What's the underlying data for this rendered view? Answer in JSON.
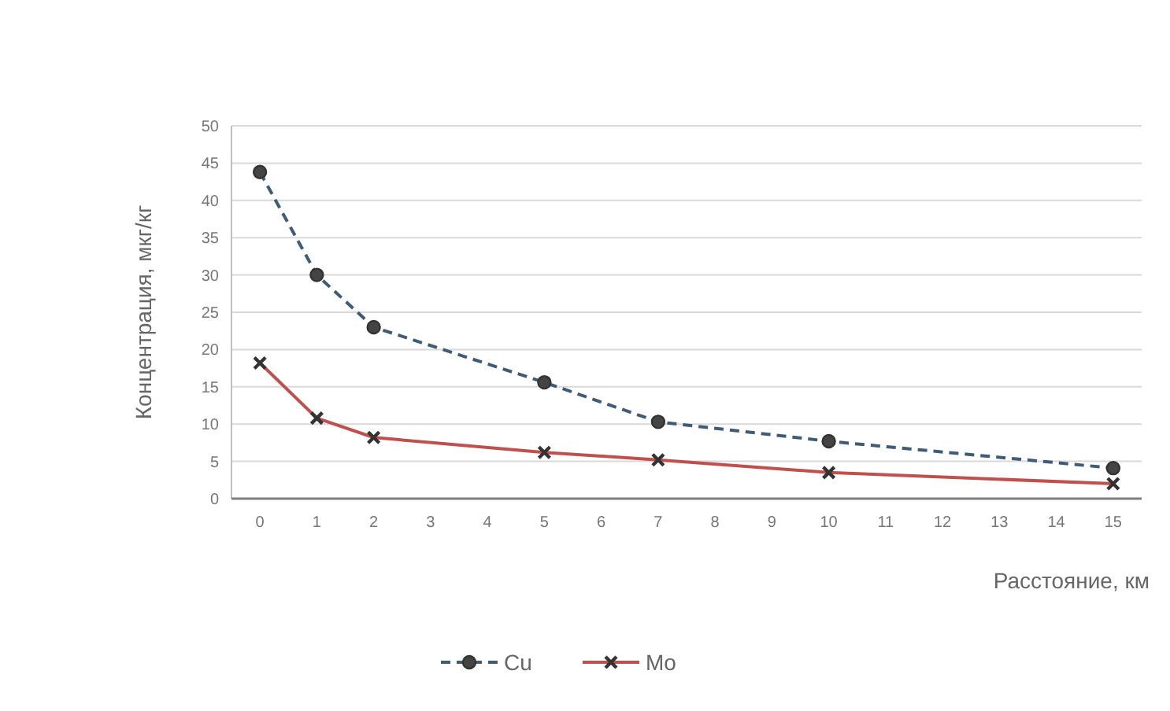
{
  "chart_data": {
    "type": "line",
    "xlabel": "Расстояние, км",
    "ylabel": "Концентрация, мкг/кг",
    "x": [
      0,
      1,
      2,
      5,
      7,
      10,
      15
    ],
    "series": [
      {
        "name": "Cu",
        "color": "#3f5b75",
        "values": [
          43.8,
          30,
          23,
          15.6,
          10.3,
          7.7,
          4.1
        ],
        "marker": "circle",
        "line_style": "dashed"
      },
      {
        "name": "Mo",
        "color": "#c0504d",
        "values": [
          18.2,
          10.8,
          8.2,
          6.2,
          5.2,
          3.5,
          2.0
        ],
        "marker": "cross",
        "line_style": "solid"
      }
    ],
    "xlim": [
      -0.5,
      15.5
    ],
    "xticks": [
      0,
      1,
      2,
      3,
      4,
      5,
      6,
      7,
      8,
      9,
      10,
      11,
      12,
      13,
      14,
      15
    ],
    "ylim": [
      0,
      50
    ],
    "yticks": [
      0,
      5,
      10,
      15,
      20,
      25,
      30,
      35,
      40,
      45,
      50
    ],
    "grid": "y",
    "legend": "bottom"
  }
}
